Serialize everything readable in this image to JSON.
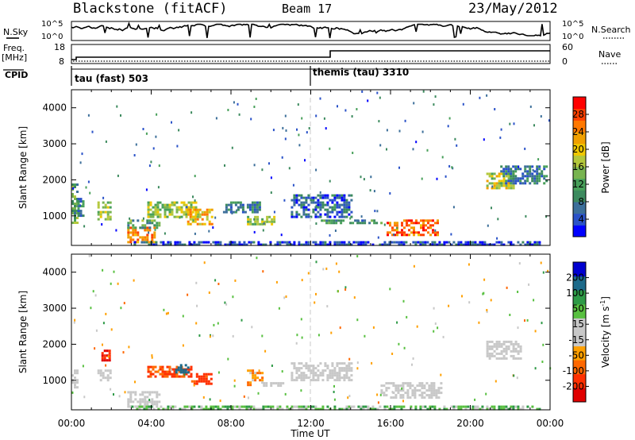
{
  "header": {
    "station": "Blackstone (fitACF)",
    "beam": "Beam 17",
    "date": "23/May/2012"
  },
  "ancillary": {
    "nsky_label": "N.Sky",
    "nsearch_label": "N.Search",
    "freq_label_top": "Freq.",
    "freq_label_bottom": "[MHz]",
    "nave_label": "Nave",
    "cpid_label": "CPID",
    "noise_ticks_left": [
      "10^5",
      "10^0"
    ],
    "noise_ticks_right": [
      "10^5",
      "10^0"
    ],
    "freq_ticks": [
      "18",
      "8"
    ],
    "nave_ticks": [
      "60",
      "0"
    ],
    "cpid_segments": [
      {
        "label": "tau (fast) 503",
        "start_hour": 0
      },
      {
        "label": "themis (tau) 3310",
        "start_hour": 12
      }
    ]
  },
  "colorbars": {
    "power": {
      "label": "Power [dB]",
      "ticks": [
        "28",
        "24",
        "20",
        "16",
        "12",
        "8",
        "4"
      ],
      "colors": [
        "#0000ff",
        "#2a52c8",
        "#3c6f9a",
        "#3c8a5e",
        "#48a05a",
        "#78b450",
        "#b4c83c",
        "#f0c800",
        "#f0a000",
        "#ff7800",
        "#ff4000",
        "#ff0000"
      ]
    },
    "velocity": {
      "label": "Velocity [m s",
      "label_sup": "-1",
      "label_end": "]",
      "ticks": [
        "200",
        "100",
        "50",
        "15",
        "-15",
        "-50",
        "-100",
        "-200"
      ],
      "colors": [
        "#e00000",
        "#ff3000",
        "#ff6800",
        "#ffa000",
        "#c8c8c8",
        "#c8c8c8",
        "#58c040",
        "#2e9a46",
        "#1c6a8a",
        "#0000d0"
      ]
    }
  },
  "chart_data": [
    {
      "type": "heatmap",
      "name": "power",
      "ylabel": "Slant Range [km]",
      "xlim": [
        0,
        24
      ],
      "ylim": [
        180,
        4500
      ],
      "yticks": [
        1000,
        2000,
        3000,
        4000
      ],
      "xticks": [
        "00:00",
        "04:00",
        "08:00",
        "12:00",
        "16:00",
        "20:00",
        "00:00"
      ],
      "regions": [
        {
          "x": [
            0.0,
            0.3
          ],
          "y": [
            800,
            1900
          ],
          "value": 12
        },
        {
          "x": [
            0.3,
            0.6
          ],
          "y": [
            1000,
            1500
          ],
          "value": 8
        },
        {
          "x": [
            1.3,
            1.9
          ],
          "y": [
            900,
            1400
          ],
          "value": 16
        },
        {
          "x": [
            2.8,
            4.2
          ],
          "y": [
            300,
            700
          ],
          "value": 24
        },
        {
          "x": [
            2.8,
            4.4
          ],
          "y": [
            700,
            900
          ],
          "value": 12
        },
        {
          "x": [
            3.8,
            6.4
          ],
          "y": [
            1000,
            1400
          ],
          "value": 16
        },
        {
          "x": [
            5.8,
            7.0
          ],
          "y": [
            800,
            1200
          ],
          "value": 22
        },
        {
          "x": [
            7.6,
            9.4
          ],
          "y": [
            1100,
            1400
          ],
          "value": 8
        },
        {
          "x": [
            8.8,
            10.2
          ],
          "y": [
            800,
            1000
          ],
          "value": 16
        },
        {
          "x": [
            11.0,
            14.0
          ],
          "y": [
            1000,
            1600
          ],
          "value": 6
        },
        {
          "x": [
            12.5,
            15.5
          ],
          "y": [
            800,
            900
          ],
          "value": 10
        },
        {
          "x": [
            15.8,
            18.4
          ],
          "y": [
            500,
            900
          ],
          "value": 26
        },
        {
          "x": [
            20.8,
            22.2
          ],
          "y": [
            1800,
            2200
          ],
          "value": 18
        },
        {
          "x": [
            21.5,
            23.8
          ],
          "y": [
            1900,
            2400
          ],
          "value": 8
        },
        {
          "x": [
            3.0,
            23.5
          ],
          "y": [
            200,
            300
          ],
          "value": 4
        }
      ]
    },
    {
      "type": "heatmap",
      "name": "velocity",
      "ylabel": "Slant Range [km]",
      "xlabel": "Time UT",
      "xlim": [
        0,
        24
      ],
      "ylim": [
        180,
        4500
      ],
      "yticks": [
        1000,
        2000,
        3000,
        4000
      ],
      "xticks": [
        "00:00",
        "04:00",
        "08:00",
        "12:00",
        "16:00",
        "20:00",
        "00:00"
      ],
      "regions": [
        {
          "x": [
            0.0,
            0.3
          ],
          "y": [
            800,
            1300
          ],
          "value": 0
        },
        {
          "x": [
            1.3,
            1.9
          ],
          "y": [
            1000,
            1300
          ],
          "value": 0
        },
        {
          "x": [
            1.5,
            1.9
          ],
          "y": [
            1550,
            1850
          ],
          "value": -200
        },
        {
          "x": [
            2.8,
            4.4
          ],
          "y": [
            300,
            700
          ],
          "value": 0
        },
        {
          "x": [
            3.8,
            6.0
          ],
          "y": [
            1100,
            1400
          ],
          "value": -100
        },
        {
          "x": [
            5.2,
            5.8
          ],
          "y": [
            1200,
            1450
          ],
          "value": 150
        },
        {
          "x": [
            6.0,
            7.0
          ],
          "y": [
            900,
            1200
          ],
          "value": -120
        },
        {
          "x": [
            8.8,
            9.6
          ],
          "y": [
            900,
            1300
          ],
          "value": -40
        },
        {
          "x": [
            9.6,
            10.6
          ],
          "y": [
            850,
            950
          ],
          "value": 0
        },
        {
          "x": [
            11.0,
            14.0
          ],
          "y": [
            1000,
            1500
          ],
          "value": 0
        },
        {
          "x": [
            15.5,
            18.5
          ],
          "y": [
            550,
            950
          ],
          "value": 0
        },
        {
          "x": [
            20.8,
            22.5
          ],
          "y": [
            1600,
            2100
          ],
          "value": 0
        },
        {
          "x": [
            3.0,
            23.5
          ],
          "y": [
            200,
            300
          ],
          "value": 30
        }
      ]
    }
  ]
}
